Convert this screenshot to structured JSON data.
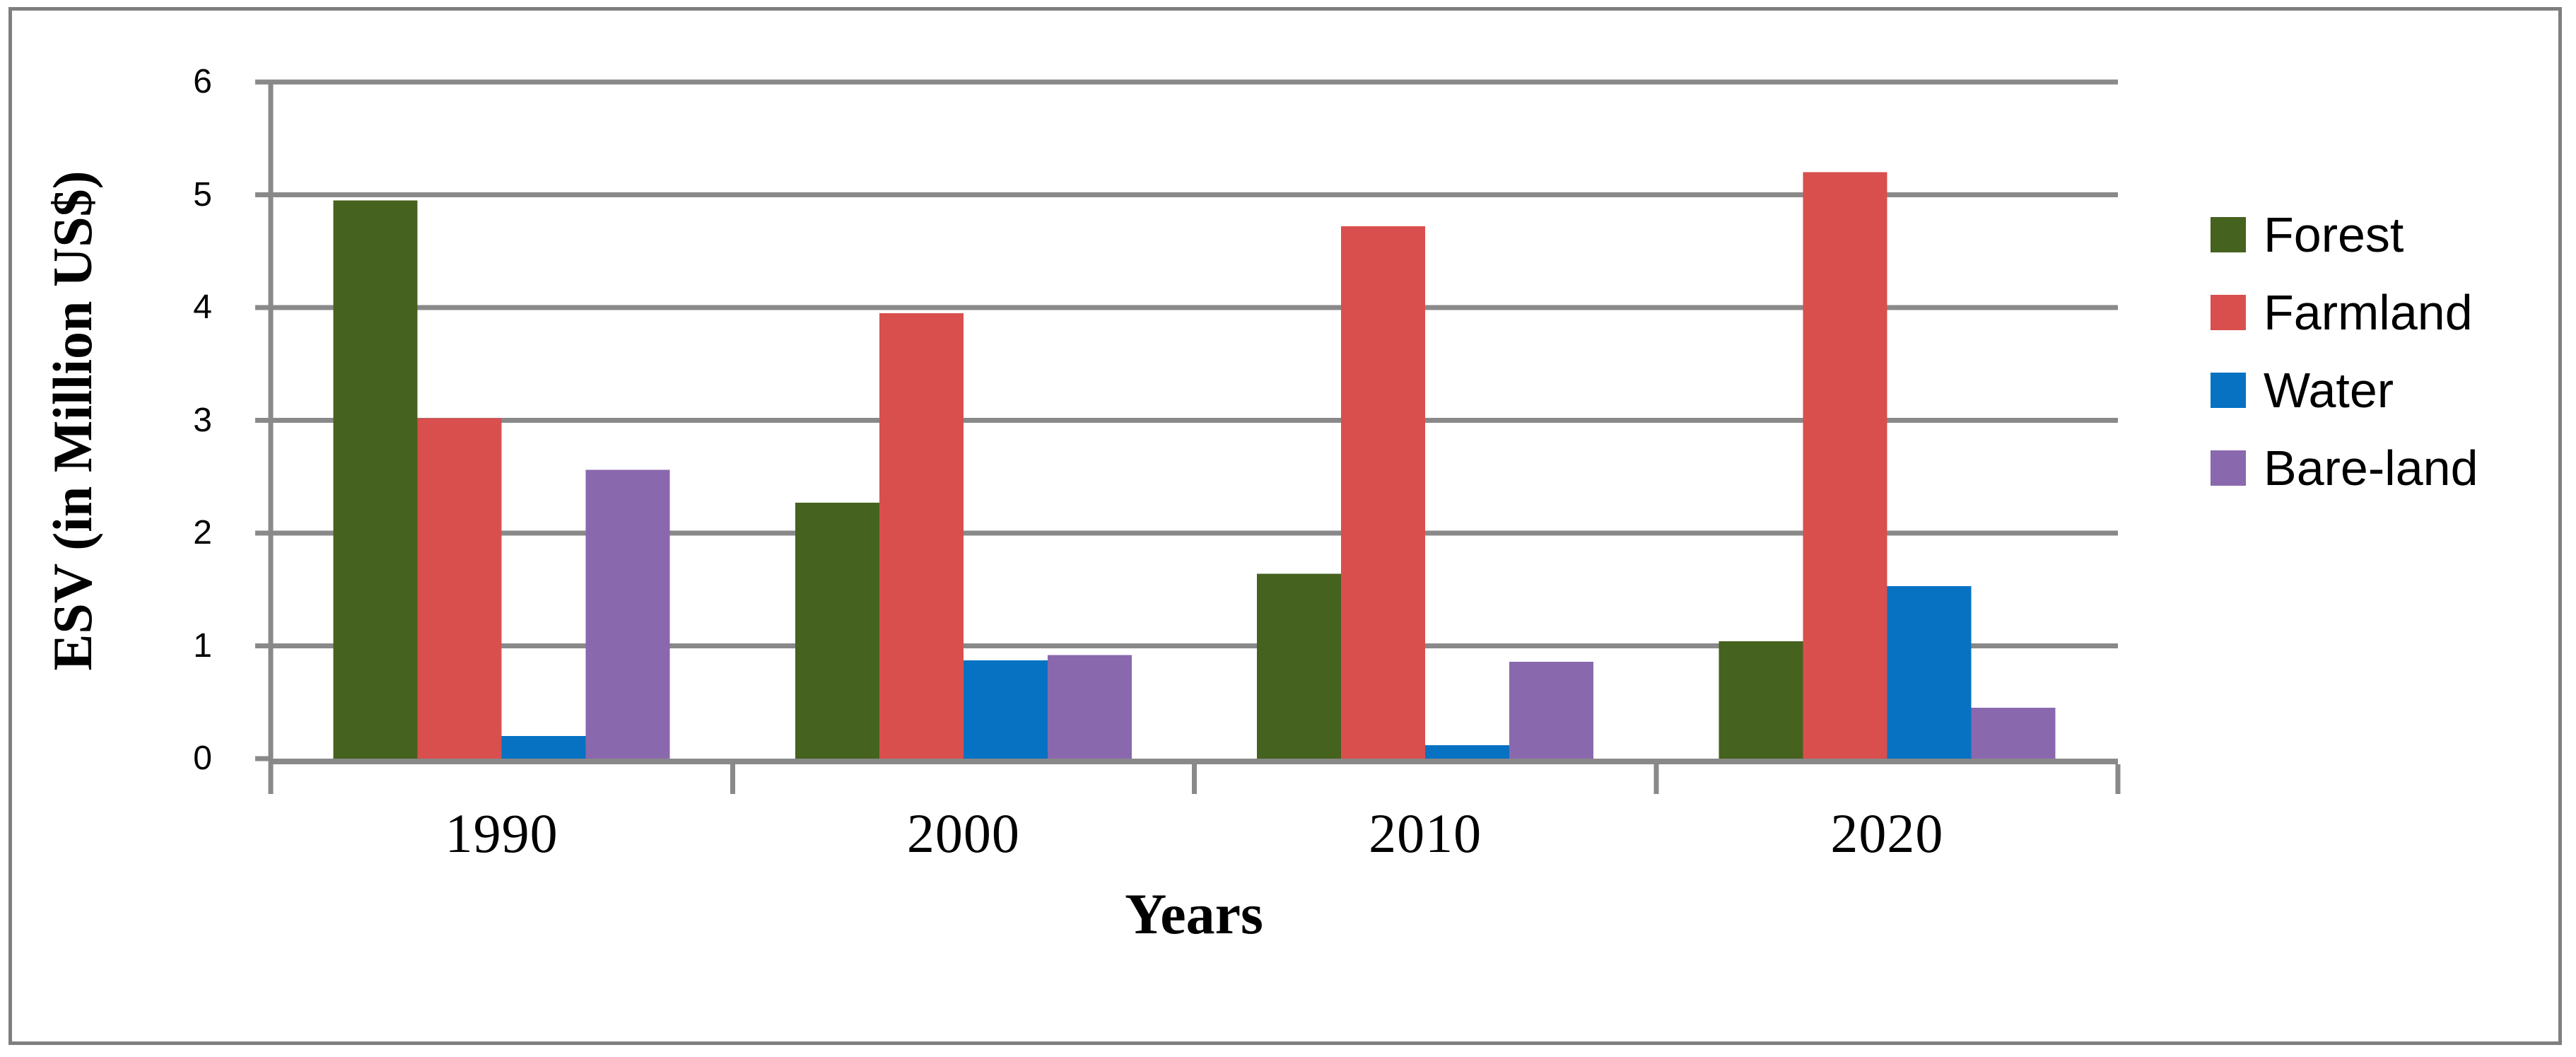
{
  "figure": {
    "background_color": "#FFFFFF",
    "border_color": "#7F7F7F",
    "gridline_color": "#898989",
    "axis_color": "#898989"
  },
  "chart_data": {
    "type": "bar",
    "title": "",
    "xlabel": "Years",
    "ylabel": "ESV (in Million US$)",
    "categories": [
      "1990",
      "2000",
      "2010",
      "2020"
    ],
    "series": [
      {
        "name": "Forest",
        "color": "#45621E",
        "values": [
          4.95,
          2.27,
          1.64,
          1.04
        ]
      },
      {
        "name": "Farmland",
        "color": "#D94F4E",
        "values": [
          3.02,
          3.95,
          4.72,
          5.2
        ]
      },
      {
        "name": "Water",
        "color": "#0772C2",
        "values": [
          0.2,
          0.87,
          0.12,
          1.53
        ]
      },
      {
        "name": "Bare-land",
        "color": "#8A68AE",
        "values": [
          2.56,
          0.92,
          0.86,
          0.45
        ]
      }
    ],
    "ylim": [
      0,
      6
    ],
    "y_ticks": [
      "0",
      "1",
      "2",
      "3",
      "4",
      "5",
      "6"
    ],
    "grid": "horizontal-major",
    "legend_position": "right"
  }
}
